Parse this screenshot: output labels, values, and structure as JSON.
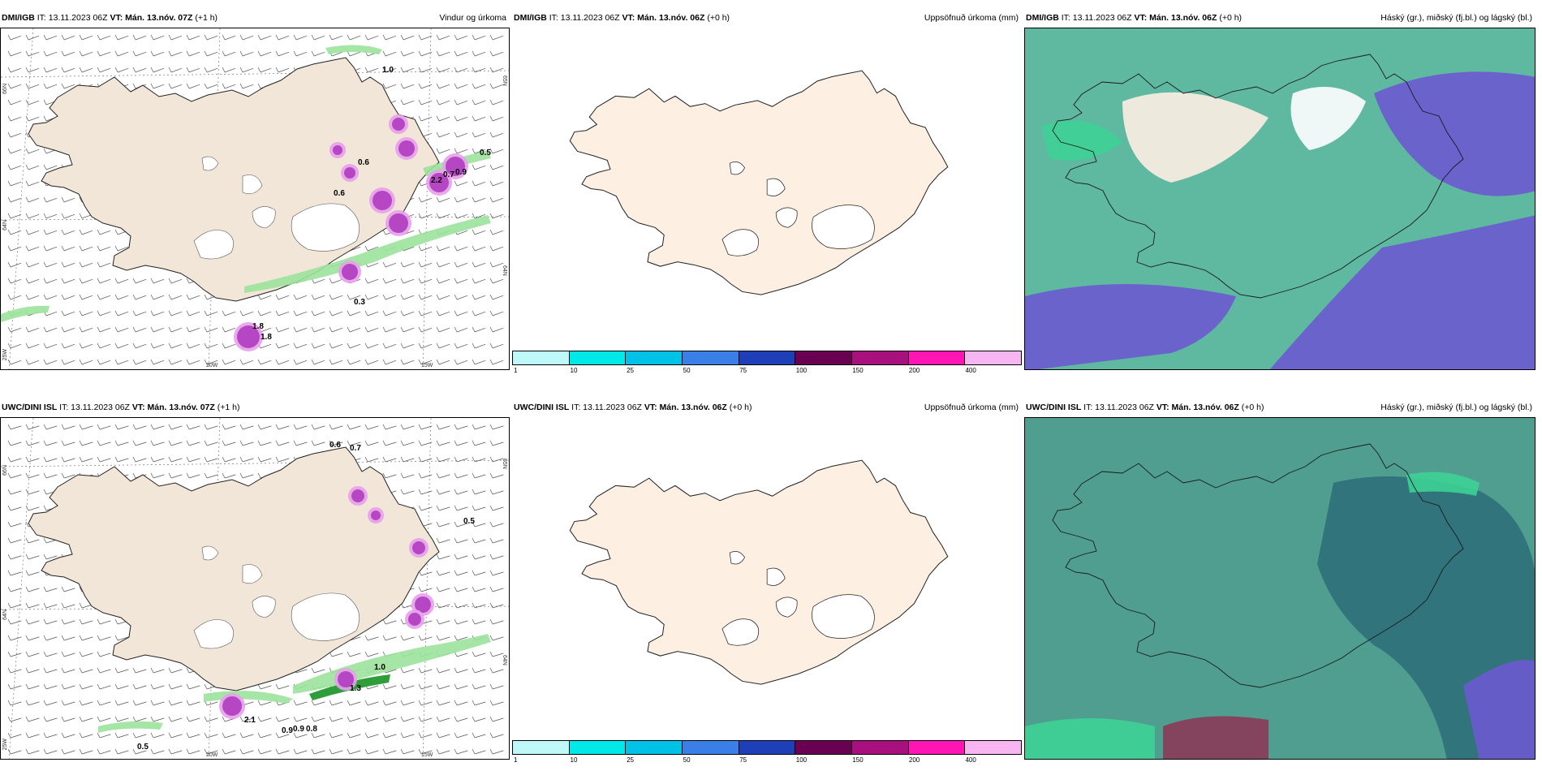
{
  "colors": {
    "land": "#f1e6d8",
    "land_plain": "#fdf0e3",
    "coast": "#222222",
    "precip_light": "#9be29b",
    "precip_mid": "#2e9e3a",
    "precip_heavy": "#b03cc0",
    "sky_teal": "#5fb8a0",
    "sky_dark": "#2e6f7a",
    "sky_violet": "#6d5ad0",
    "sky_green": "#3ed296"
  },
  "rows": [
    {
      "model": "DMI/IGB",
      "wind": {
        "it_label": "IT: 13.11.2023 06Z",
        "vt_label": "VT: Mán. 13.nóv. 07Z",
        "lead": "(+1 h)",
        "title": "Vindur og úrkoma",
        "lat_labels": [
          "66N",
          "64N"
        ],
        "lat_labels_right": [
          "65N",
          "64N"
        ],
        "lon_labels": [
          "25W",
          "20W",
          "15W"
        ],
        "values": [
          "1.0",
          "0.5",
          "0.6",
          "0.6",
          "0.3",
          "1.8",
          "0.7",
          "0.9",
          "2.2",
          "1.8"
        ]
      },
      "accum": {
        "it_label": "IT: 13.11.2023 06Z",
        "vt_label": "VT: Mán. 13.nóv. 06Z",
        "lead": "(+0 h)",
        "title": "Uppsöfnuð úrkoma (mm)"
      },
      "cloud": {
        "it_label": "IT: 13.11.2023 06Z",
        "vt_label": "VT: Mán. 13.nóv. 06Z",
        "lead": "(+0 h)",
        "title": "Háský (gr.), miðský (fj.bl.) og lágský (bl.)"
      }
    },
    {
      "model": "UWC/DINI ISL",
      "wind": {
        "it_label": "IT: 13.11.2023 06Z",
        "vt_label": "VT: Mán. 13.nóv. 07Z",
        "lead": "(+1 h)",
        "title": "",
        "lat_labels": [
          "66N",
          "64N"
        ],
        "lat_labels_right": [
          "65N",
          "64N"
        ],
        "lon_labels": [
          "25W",
          "20W",
          "15W"
        ],
        "values": [
          "0.6",
          "0.7",
          "0.5",
          "1.0",
          "1.3",
          "0.9",
          "0.9",
          "0.8",
          "0.5",
          "2.1"
        ]
      },
      "accum": {
        "it_label": "IT: 13.11.2023 06Z",
        "vt_label": "VT: Mán. 13.nóv. 06Z",
        "lead": "(+0 h)",
        "title": "Uppsöfnuð úrkoma (mm)"
      },
      "cloud": {
        "it_label": "IT: 13.11.2023 06Z",
        "vt_label": "VT: Mán. 13.nóv. 06Z",
        "lead": "(+0 h)",
        "title": "Háský (gr.), miðský (fj.bl.) og lágský (bl.)"
      }
    }
  ],
  "colorbar": {
    "ticks": [
      "1",
      "10",
      "25",
      "50",
      "75",
      "100",
      "150",
      "200",
      "400"
    ],
    "colors": [
      "#bff8f8",
      "#00e8e8",
      "#00c2e6",
      "#3a7ee8",
      "#1f3fb8",
      "#6a0050",
      "#a8107e",
      "#ff14b4",
      "#f7b6f2"
    ]
  }
}
